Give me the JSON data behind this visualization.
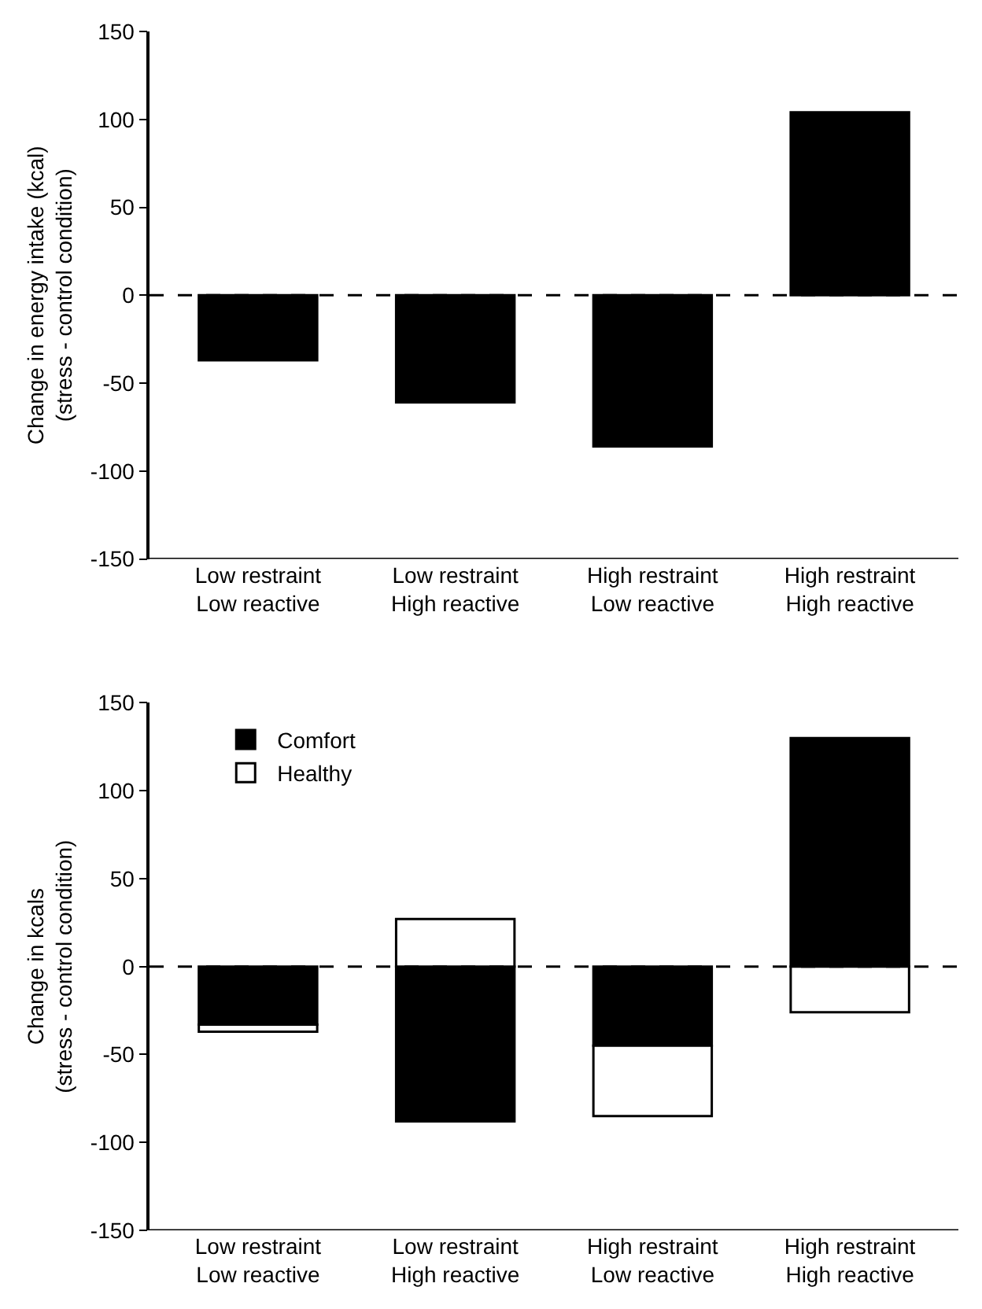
{
  "chart_data": [
    {
      "type": "bar",
      "ylabel": "Change in energy intake (kcal)\n(stress - control condition)",
      "categories": [
        "Low restraint\nLow reactive",
        "Low restraint\nHigh reactive",
        "High restraint\nLow reactive",
        "High restraint\nHigh reactive"
      ],
      "series": [
        {
          "color": "#000000",
          "values": [
            -37,
            -61,
            -86,
            104
          ]
        }
      ],
      "ylim": [
        -150,
        150
      ],
      "yticks": [
        -150,
        -100,
        -50,
        0,
        50,
        100,
        150
      ],
      "legend": false,
      "ref_lines": [
        {
          "axis": "y",
          "value": 0,
          "line_style": "dashed",
          "color": "#000000"
        }
      ]
    },
    {
      "type": "bar",
      "stacked": true,
      "ylabel": "Change in kcals\n(stress - control condition)",
      "categories": [
        "Low restraint\nLow reactive",
        "Low restraint\nHigh reactive",
        "High restraint\nLow reactive",
        "High restraint\nHigh reactive"
      ],
      "series": [
        {
          "name": "Comfort",
          "color": "#000000",
          "values": [
            -33,
            -88,
            -45,
            130
          ]
        },
        {
          "name": "Healthy",
          "color": "#ffffff",
          "values": [
            -4,
            27,
            -40,
            -26
          ]
        }
      ],
      "ylim": [
        -150,
        150
      ],
      "yticks": [
        -150,
        -100,
        -50,
        0,
        50,
        100,
        150
      ],
      "legend": "top left",
      "ref_lines": [
        {
          "axis": "y",
          "value": 0,
          "line_style": "dashed",
          "color": "#000000"
        }
      ]
    }
  ]
}
